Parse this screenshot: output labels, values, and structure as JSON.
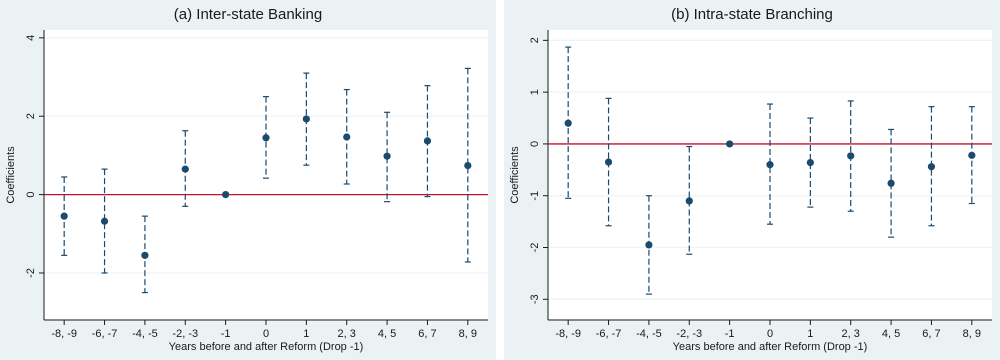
{
  "chart_data": [
    {
      "type": "scatter",
      "title": "(a) Inter-state Banking",
      "xlabel": "Years before and after Reform (Drop -1)",
      "ylabel": "Coefficients",
      "categories": [
        "-8, -9",
        "-6, -7",
        "-4, -5",
        "-2, -3",
        "-1",
        "0",
        "1",
        "2, 3",
        "4, 5",
        "6, 7",
        "8, 9"
      ],
      "yticks": [
        -2,
        0,
        2,
        4
      ],
      "ylim": [
        -3.2,
        4.2
      ],
      "reference_line": 0,
      "grid": true,
      "colors": {
        "marker": "#1a4a6e",
        "ci": "#1a4a6e",
        "reference": "#c8102e",
        "grid": "#ffffff"
      },
      "series": [
        {
          "estimates": [
            -0.55,
            -0.68,
            -1.55,
            0.65,
            0.0,
            1.45,
            1.93,
            1.47,
            0.98,
            1.37,
            0.74
          ],
          "ci_low": [
            -1.55,
            -2.0,
            -2.5,
            -0.3,
            0.0,
            0.42,
            0.75,
            0.27,
            -0.18,
            -0.05,
            -1.72
          ],
          "ci_high": [
            0.45,
            0.65,
            -0.55,
            1.63,
            0.0,
            2.5,
            3.1,
            2.68,
            2.1,
            2.78,
            3.22
          ]
        }
      ]
    },
    {
      "type": "scatter",
      "title": "(b) Intra-state Branching",
      "xlabel": "Years before and after Reform (Drop -1)",
      "ylabel": "Coefficients",
      "categories": [
        "-8, -9",
        "-6, -7",
        "-4, -5",
        "-2, -3",
        "-1",
        "0",
        "1",
        "2, 3",
        "4, 5",
        "6, 7",
        "8, 9"
      ],
      "yticks": [
        -3,
        -2,
        -1,
        0,
        1,
        2
      ],
      "ylim": [
        -3.4,
        2.2
      ],
      "reference_line": 0,
      "grid": true,
      "colors": {
        "marker": "#1a4a6e",
        "ci": "#1a4a6e",
        "reference": "#c8102e",
        "grid": "#ffffff"
      },
      "series": [
        {
          "estimates": [
            0.4,
            -0.35,
            -1.95,
            -1.1,
            0.0,
            -0.4,
            -0.36,
            -0.23,
            -0.76,
            -0.44,
            -0.22
          ],
          "ci_low": [
            -1.05,
            -1.58,
            -2.9,
            -2.13,
            0.0,
            -1.55,
            -1.22,
            -1.3,
            -1.8,
            -1.58,
            -1.15
          ],
          "ci_high": [
            1.87,
            0.88,
            -1.0,
            -0.05,
            0.0,
            0.77,
            0.5,
            0.83,
            0.28,
            0.72,
            0.72
          ]
        }
      ]
    }
  ]
}
